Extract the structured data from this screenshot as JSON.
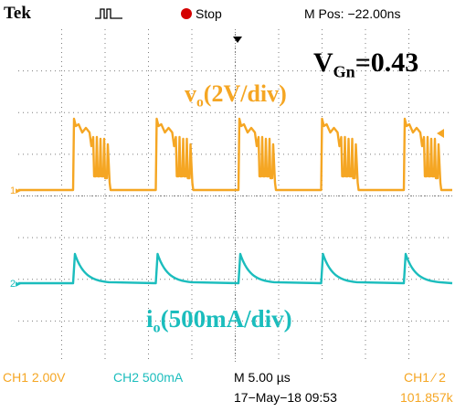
{
  "header": {
    "brand": "Tek",
    "run_state": "Stop",
    "position_readout": "M Pos: −22.00ns"
  },
  "annotations": {
    "vgn_main": "V",
    "vgn_sub": "Gn",
    "vgn_value": "=0.43",
    "ch1_main": "v",
    "ch1_sub": "o",
    "ch1_rest": "(2V/div)",
    "ch2_main": "i",
    "ch2_sub": "o",
    "ch2_rest": "(500mA/div)"
  },
  "channels": {
    "ch1": {
      "marker": "1",
      "readout": "CH1  2.00V",
      "color": "#f5a623"
    },
    "ch2": {
      "marker": "2",
      "readout": "CH2  500mA",
      "color": "#1bbdbd"
    }
  },
  "footer": {
    "timebase": "M 5.00 µs",
    "trigger": "CH1  ∕  2",
    "datetime": "17−May−18 09:53",
    "frequency": "101.857k"
  },
  "colors": {
    "grid": "#7d7d7d",
    "stop": "#d40000",
    "text": "#000000"
  }
}
